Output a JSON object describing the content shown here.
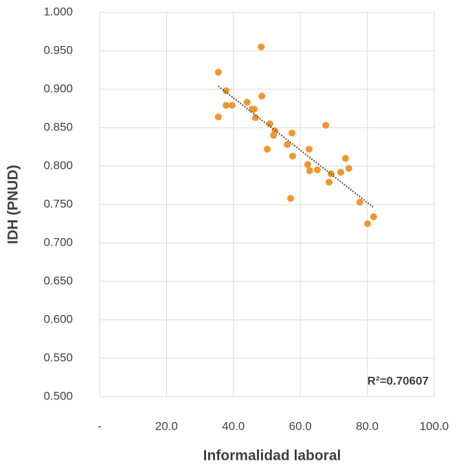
{
  "chart_data": {
    "type": "scatter",
    "x_label": "Informalidad laboral",
    "y_label": "IDH (PNUD)",
    "annotation": "R²=0.70607",
    "color": "#f0962e",
    "grid": true,
    "xlim": [
      0,
      100
    ],
    "ylim": [
      0.5,
      1.0
    ],
    "xticks": [
      {
        "value": 0,
        "label": "-"
      },
      {
        "value": 20,
        "label": "20.0"
      },
      {
        "value": 40,
        "label": "40.0"
      },
      {
        "value": 60,
        "label": "60.0"
      },
      {
        "value": 80,
        "label": "80.0"
      },
      {
        "value": 100,
        "label": "100.0"
      }
    ],
    "yticks": [
      {
        "value": 0.5,
        "label": "0.500"
      },
      {
        "value": 0.55,
        "label": "0.550"
      },
      {
        "value": 0.6,
        "label": "0.600"
      },
      {
        "value": 0.65,
        "label": "0.650"
      },
      {
        "value": 0.7,
        "label": "0.700"
      },
      {
        "value": 0.75,
        "label": "0.750"
      },
      {
        "value": 0.8,
        "label": "0.800"
      },
      {
        "value": 0.85,
        "label": "0.850"
      },
      {
        "value": 0.9,
        "label": "0.900"
      },
      {
        "value": 0.95,
        "label": "0.950"
      },
      {
        "value": 1.0,
        "label": "1.000"
      }
    ],
    "x": [
      35.5,
      35.5,
      37.8,
      37.8,
      39.6,
      48.3,
      48.5,
      44.1,
      45.6,
      46.2,
      46.6,
      50.9,
      52.4,
      52.0,
      50.1,
      57.5,
      56.1,
      57.7,
      57.1,
      67.6,
      62.6,
      62.2,
      62.8,
      65.1,
      69.2,
      68.6,
      72.1,
      73.5,
      74.5,
      77.8,
      80.1,
      81.9
    ],
    "values": [
      0.922,
      0.864,
      0.898,
      0.879,
      0.879,
      0.955,
      0.891,
      0.883,
      0.874,
      0.874,
      0.863,
      0.855,
      0.846,
      0.84,
      0.822,
      0.843,
      0.828,
      0.813,
      0.758,
      0.853,
      0.822,
      0.802,
      0.794,
      0.795,
      0.79,
      0.779,
      0.792,
      0.81,
      0.797,
      0.753,
      0.725,
      0.734
    ],
    "trendline": {
      "color": "#5a4a2a",
      "x": [
        35.5,
        82
      ],
      "values": [
        0.904,
        0.746
      ]
    }
  }
}
